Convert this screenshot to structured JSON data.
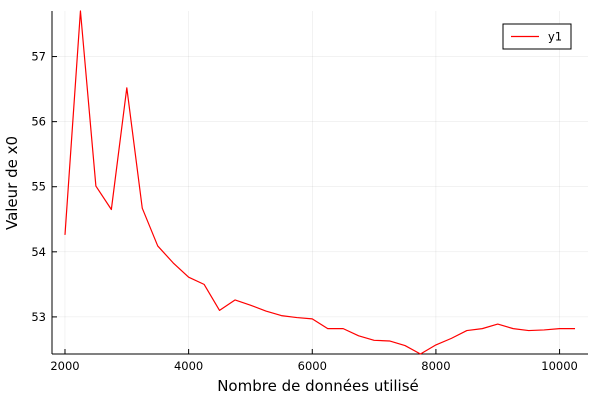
{
  "chart_data": {
    "type": "line",
    "xlabel": "Nombre de données utilisé",
    "ylabel": "Valeur de x0",
    "xlim": [
      1790,
      10460
    ],
    "ylim": [
      52.43,
      57.7
    ],
    "xticks": [
      2000,
      4000,
      6000,
      8000,
      10000
    ],
    "xtick_labels": [
      "2000",
      "4000",
      "6000",
      "8000",
      "10000"
    ],
    "yticks": [
      53,
      54,
      55,
      56,
      57
    ],
    "ytick_labels": [
      "53",
      "54",
      "55",
      "56",
      "57"
    ],
    "grid": true,
    "legend_position": "top-right",
    "series": [
      {
        "name": "y1",
        "color": "#ff0000",
        "x": [
          2000,
          2250,
          2500,
          2750,
          3000,
          3250,
          3500,
          3750,
          4000,
          4250,
          4500,
          4750,
          5000,
          5250,
          5500,
          5750,
          6000,
          6250,
          6500,
          6750,
          7000,
          7250,
          7500,
          7750,
          8000,
          8250,
          8500,
          8750,
          9000,
          9250,
          9500,
          9750,
          10000,
          10250
        ],
        "y": [
          54.26,
          57.7,
          55.01,
          54.65,
          56.52,
          54.67,
          54.09,
          53.83,
          53.61,
          53.5,
          53.1,
          53.26,
          53.18,
          53.09,
          53.02,
          52.99,
          52.97,
          52.82,
          52.82,
          52.71,
          52.64,
          52.63,
          52.56,
          52.43,
          52.57,
          52.67,
          52.79,
          52.82,
          52.89,
          52.82,
          52.79,
          52.8,
          52.82,
          52.82
        ]
      }
    ]
  }
}
